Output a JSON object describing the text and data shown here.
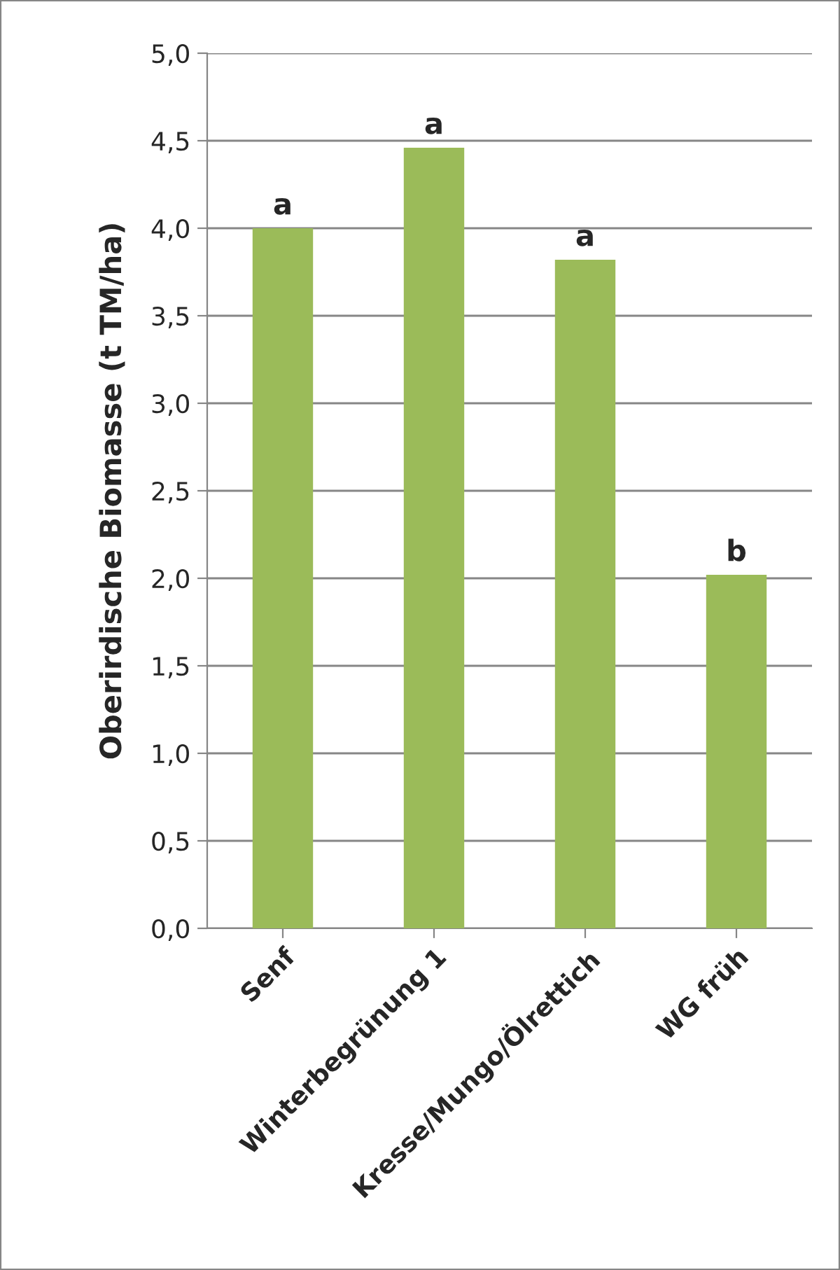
{
  "chart_data": {
    "type": "bar",
    "ylabel": "Oberirdische Biomasse (t TM/ha)",
    "categories": [
      "Senf",
      "Winterbegrünung 1",
      "Kresse/Mungo/Ölrettich",
      "WG früh"
    ],
    "values": [
      4.0,
      4.46,
      3.82,
      2.02
    ],
    "color": "#9bbb59",
    "ylim": [
      0,
      5
    ],
    "yticks": [
      {
        "value": 0,
        "label": "0,0"
      },
      {
        "value": 0.5,
        "label": "0,5"
      },
      {
        "value": 1,
        "label": "1,0"
      },
      {
        "value": 1.5,
        "label": "1,5"
      },
      {
        "value": 2,
        "label": "2,0"
      },
      {
        "value": 2.5,
        "label": "2,5"
      },
      {
        "value": 3,
        "label": "3,0"
      },
      {
        "value": 3.5,
        "label": "3,5"
      },
      {
        "value": 4,
        "label": "4,0"
      },
      {
        "value": 4.5,
        "label": "4,5"
      },
      {
        "value": 5,
        "label": "5,0"
      }
    ],
    "grid": "y",
    "annotations": [
      {
        "text": "a",
        "x": "Senf",
        "y": 4.0
      },
      {
        "text": "a",
        "x": "Winterbegrünung 1",
        "y": 4.46
      },
      {
        "text": "a",
        "x": "Kresse/Mungo/Ölrettich",
        "y": 3.82
      },
      {
        "text": "b",
        "x": "WG früh",
        "y": 2.02
      }
    ]
  }
}
